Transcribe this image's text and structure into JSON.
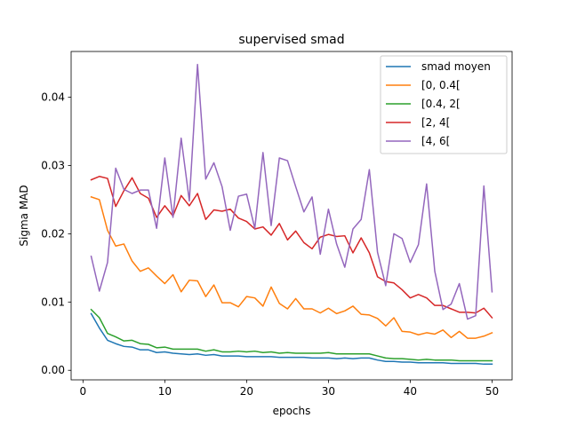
{
  "chart_data": {
    "type": "line",
    "title": "supervised smad",
    "xlabel": "epochs",
    "ylabel": "Sigma MAD",
    "xlim": [
      -1.45,
      52.45
    ],
    "ylim": [
      -0.0014,
      0.0467
    ],
    "xticks": [
      0,
      10,
      20,
      30,
      40,
      50
    ],
    "xtick_labels": [
      "0",
      "10",
      "20",
      "30",
      "40",
      "50"
    ],
    "yticks": [
      0.0,
      0.01,
      0.02,
      0.03,
      0.04
    ],
    "ytick_labels": [
      "0.00",
      "0.01",
      "0.02",
      "0.03",
      "0.04"
    ],
    "grid": false,
    "legend_position": "top-right",
    "x": [
      1,
      2,
      3,
      4,
      5,
      6,
      7,
      8,
      9,
      10,
      11,
      12,
      13,
      14,
      15,
      16,
      17,
      18,
      19,
      20,
      21,
      22,
      23,
      24,
      25,
      26,
      27,
      28,
      29,
      30,
      31,
      32,
      33,
      34,
      35,
      36,
      37,
      38,
      39,
      40,
      41,
      42,
      43,
      44,
      45,
      46,
      47,
      48,
      49,
      50
    ],
    "series": [
      {
        "name": "smad moyen",
        "color": "#1f77b4",
        "values": [
          0.0083,
          0.0062,
          0.0044,
          0.0039,
          0.0035,
          0.0034,
          0.003,
          0.003,
          0.0026,
          0.0027,
          0.0025,
          0.0024,
          0.0023,
          0.0024,
          0.0022,
          0.0023,
          0.0021,
          0.0021,
          0.0021,
          0.002,
          0.002,
          0.002,
          0.002,
          0.0019,
          0.0019,
          0.0019,
          0.0019,
          0.0018,
          0.0018,
          0.0018,
          0.0017,
          0.0018,
          0.0017,
          0.0018,
          0.0018,
          0.0015,
          0.0013,
          0.0013,
          0.0012,
          0.0012,
          0.0011,
          0.0011,
          0.0011,
          0.0011,
          0.001,
          0.001,
          0.001,
          0.001,
          0.0009,
          0.0009
        ]
      },
      {
        "name": "[0, 0.4[",
        "color": "#ff7f0e",
        "values": [
          0.0254,
          0.025,
          0.0205,
          0.0182,
          0.0185,
          0.016,
          0.0145,
          0.015,
          0.0138,
          0.0127,
          0.014,
          0.0115,
          0.0132,
          0.0131,
          0.0108,
          0.0125,
          0.0099,
          0.0099,
          0.0093,
          0.0108,
          0.0106,
          0.0094,
          0.0122,
          0.0098,
          0.009,
          0.0105,
          0.009,
          0.009,
          0.0084,
          0.0091,
          0.0083,
          0.0087,
          0.0094,
          0.0082,
          0.0081,
          0.0076,
          0.0065,
          0.0077,
          0.0057,
          0.0056,
          0.0052,
          0.0055,
          0.0053,
          0.0059,
          0.0048,
          0.0057,
          0.0047,
          0.0047,
          0.005,
          0.0055
        ]
      },
      {
        "name": "[0.4, 2[",
        "color": "#2ca02c",
        "values": [
          0.0089,
          0.0077,
          0.0054,
          0.0049,
          0.0043,
          0.0044,
          0.0039,
          0.0038,
          0.0033,
          0.0034,
          0.0031,
          0.0031,
          0.0031,
          0.0031,
          0.0028,
          0.003,
          0.0027,
          0.0027,
          0.0028,
          0.0027,
          0.0028,
          0.0026,
          0.0027,
          0.0025,
          0.0026,
          0.0025,
          0.0025,
          0.0025,
          0.0025,
          0.0026,
          0.0024,
          0.0024,
          0.0024,
          0.0024,
          0.0024,
          0.0021,
          0.0018,
          0.0017,
          0.0017,
          0.0016,
          0.0015,
          0.0016,
          0.0015,
          0.0015,
          0.0015,
          0.0014,
          0.0014,
          0.0014,
          0.0014,
          0.0014
        ]
      },
      {
        "name": "[2, 4[",
        "color": "#d62728",
        "values": [
          0.0279,
          0.0284,
          0.0281,
          0.024,
          0.0263,
          0.0282,
          0.0259,
          0.0252,
          0.0224,
          0.0241,
          0.0226,
          0.0256,
          0.0241,
          0.0259,
          0.0221,
          0.0235,
          0.0233,
          0.0236,
          0.0223,
          0.0218,
          0.0207,
          0.021,
          0.0198,
          0.0215,
          0.0191,
          0.0204,
          0.0187,
          0.0178,
          0.0195,
          0.0199,
          0.0196,
          0.0197,
          0.0172,
          0.0194,
          0.0172,
          0.0137,
          0.013,
          0.0128,
          0.0118,
          0.0106,
          0.0111,
          0.0106,
          0.0095,
          0.0095,
          0.009,
          0.0085,
          0.0085,
          0.0084,
          0.0091,
          0.0077
        ]
      },
      {
        "name": "[4, 6[",
        "color": "#9467bd",
        "values": [
          0.0167,
          0.0116,
          0.0158,
          0.0296,
          0.0265,
          0.0259,
          0.0264,
          0.0264,
          0.0208,
          0.0311,
          0.0224,
          0.034,
          0.0248,
          0.0448,
          0.028,
          0.0304,
          0.0269,
          0.0205,
          0.0255,
          0.0258,
          0.0208,
          0.0319,
          0.0212,
          0.0311,
          0.0307,
          0.0269,
          0.0232,
          0.0254,
          0.017,
          0.0236,
          0.0185,
          0.0151,
          0.0207,
          0.0221,
          0.0294,
          0.0173,
          0.0124,
          0.02,
          0.0193,
          0.0158,
          0.0184,
          0.0273,
          0.0145,
          0.0089,
          0.0097,
          0.0127,
          0.0075,
          0.008,
          0.027,
          0.0115
        ]
      }
    ]
  }
}
